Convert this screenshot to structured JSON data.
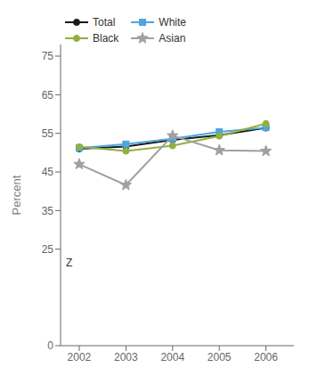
{
  "chart_data": {
    "type": "line",
    "x": [
      2002,
      2003,
      2004,
      2005,
      2006
    ],
    "xlim": [
      2001.6,
      2006.6
    ],
    "xticks": [
      2002,
      2003,
      2004,
      2005,
      2006
    ],
    "ylim": [
      0,
      78
    ],
    "yticks": [
      0,
      25,
      35,
      45,
      55,
      65,
      75
    ],
    "y_label": "Percent",
    "grid": false,
    "legend": "upper left",
    "annotations": [
      {
        "text": "Z",
        "x": 2001.62,
        "y": 21.5
      }
    ],
    "series": [
      {
        "name": "Total",
        "color": "#1a1a1a",
        "marker": "circle",
        "values": [
          51.0,
          51.6,
          53.3,
          54.5,
          56.4
        ]
      },
      {
        "name": "White",
        "color": "#4ea6dc",
        "marker": "square",
        "values": [
          51.2,
          52.2,
          53.6,
          55.4,
          56.5
        ]
      },
      {
        "name": "Black",
        "color": "#92b040",
        "marker": "circle",
        "values": [
          51.5,
          50.4,
          51.8,
          54.3,
          57.5
        ]
      },
      {
        "name": "Asian",
        "color": "#a0a0a0",
        "marker": "star",
        "values": [
          47.0,
          41.6,
          54.4,
          50.6,
          50.4
        ]
      }
    ]
  }
}
